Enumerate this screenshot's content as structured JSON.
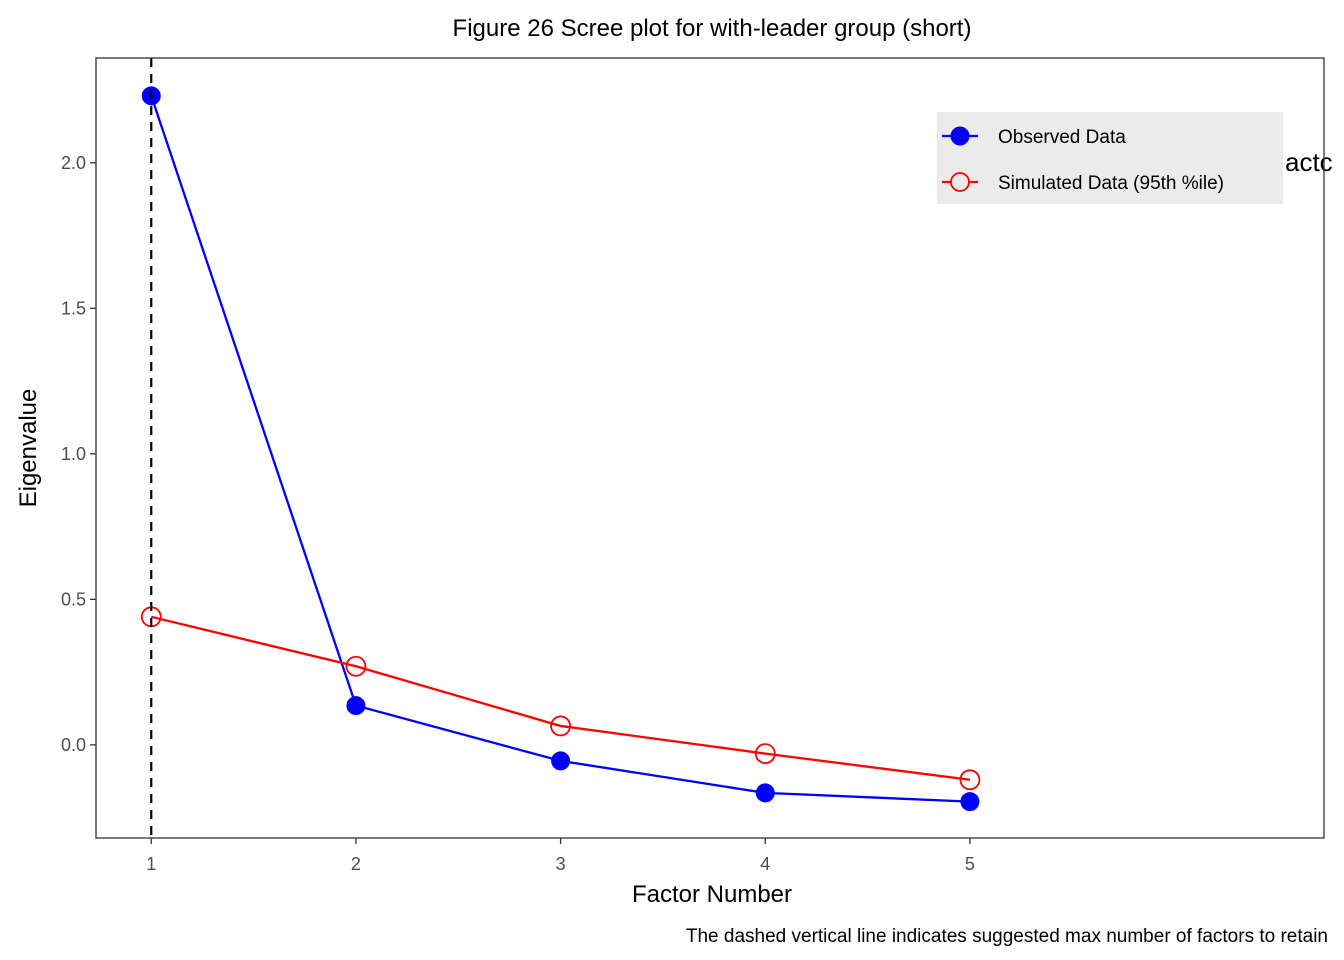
{
  "chart_data": {
    "type": "line",
    "title": "Figure 26 Scree plot for with-leader group (short)",
    "xlabel": "Factor Number",
    "ylabel": "Eigenvalue",
    "caption": "The dashed vertical line indicates suggested max number of factors to retain",
    "stray_text": "actc",
    "x": [
      1,
      2,
      3,
      4,
      5
    ],
    "x_ticks": [
      "1",
      "2",
      "3",
      "4",
      "5"
    ],
    "y_ticks": [
      "0.0",
      "0.5",
      "1.0",
      "1.5",
      "2.0"
    ],
    "xlim": [
      0.73,
      6.73
    ],
    "ylim": [
      -0.32,
      2.36
    ],
    "grid": false,
    "legend_position": "top-right",
    "vline_x": 1,
    "series": [
      {
        "name": "Observed Data",
        "values": [
          2.23,
          0.135,
          -0.055,
          -0.165,
          -0.195
        ],
        "color": "#0000ff",
        "marker": "filled-circle"
      },
      {
        "name": "Simulated Data (95th %ile)",
        "values": [
          0.44,
          0.27,
          0.065,
          -0.03,
          -0.12
        ],
        "color": "#ff0000",
        "marker": "open-circle"
      }
    ]
  }
}
